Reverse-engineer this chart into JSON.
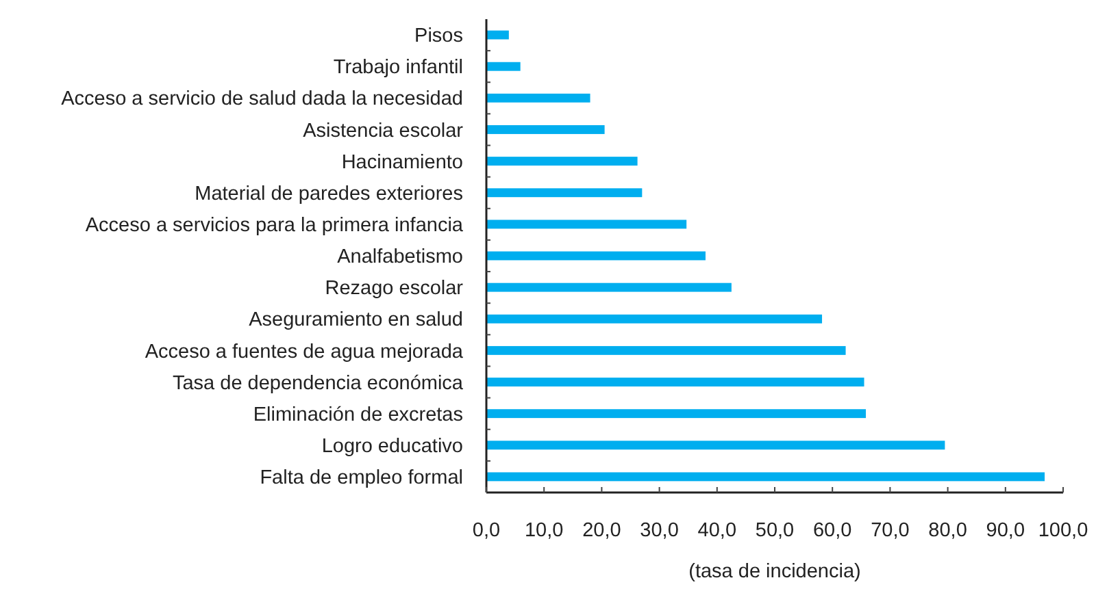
{
  "chart_data": {
    "type": "bar",
    "orientation": "horizontal",
    "xlabel": "(tasa de incidencia)",
    "categories": [
      "Pisos",
      "Trabajo infantil",
      "Acceso a servicio de salud dada la necesidad",
      "Asistencia escolar",
      "Hacinamiento",
      "Material de paredes exteriores",
      "Acceso a servicios para la primera infancia",
      "Analfabetismo",
      "Rezago escolar",
      "Aseguramiento en salud",
      "Acceso a fuentes de agua mejorada",
      "Tasa de dependencia económica",
      "Eliminación de excretas",
      "Logro educativo",
      "Falta de empleo formal"
    ],
    "values": [
      3.9,
      5.9,
      18.0,
      20.5,
      26.2,
      27.0,
      34.7,
      38.0,
      42.5,
      58.2,
      62.3,
      65.5,
      65.8,
      79.5,
      96.8
    ],
    "color": "#00aeef",
    "xlim": [
      0,
      100
    ],
    "xticks": [
      {
        "value": 0,
        "label": "0,0"
      },
      {
        "value": 10,
        "label": "10,0"
      },
      {
        "value": 20,
        "label": "20,0"
      },
      {
        "value": 30,
        "label": "30,0"
      },
      {
        "value": 40,
        "label": "40,0"
      },
      {
        "value": 50,
        "label": "50,0"
      },
      {
        "value": 60,
        "label": "60,0"
      },
      {
        "value": 70,
        "label": "70,0"
      },
      {
        "value": 80,
        "label": "80,0"
      },
      {
        "value": 90,
        "label": "90,0"
      },
      {
        "value": 100,
        "label": "100,0"
      }
    ]
  }
}
